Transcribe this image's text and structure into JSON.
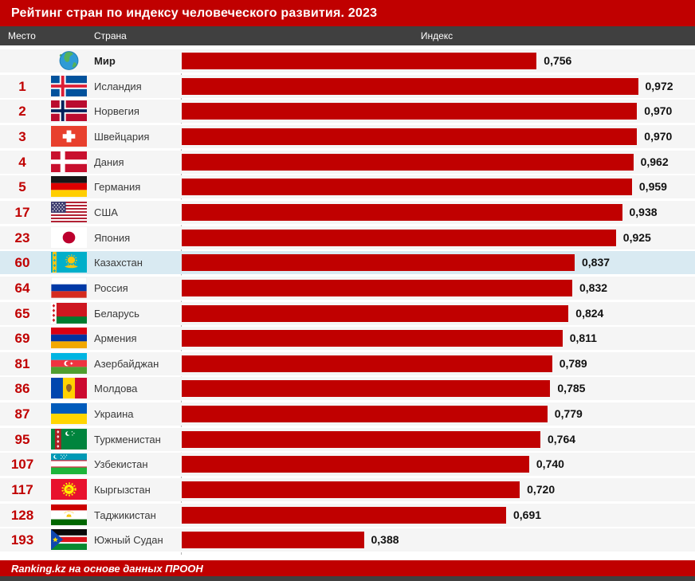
{
  "title": "Рейтинг стран по индексу человеческого развития. 2023",
  "columns": {
    "rank": "Место",
    "country": "Страна",
    "index": "Индекс"
  },
  "footer": {
    "source": "Ranking.kz на основе данных ПРООН"
  },
  "colors": {
    "accent_red": "#c00000",
    "header_dark": "#404040",
    "row_bg": "#f5f5f5",
    "highlight_row_bg": "#d9eaf2",
    "bar_color": "#c00000",
    "rank_color": "#c00000",
    "value_color": "#111111"
  },
  "chart_data": {
    "type": "bar",
    "orientation": "horizontal",
    "title": "Рейтинг стран по индексу человеческого развития. 2023",
    "xlabel": "Индекс",
    "xlim": [
      0,
      1
    ],
    "grid": false,
    "value_format": "comma-decimal",
    "rows": [
      {
        "rank": "",
        "country": "Мир",
        "flag": "world",
        "value": 0.756,
        "label": "0,756",
        "bold": true,
        "highlight": false
      },
      {
        "rank": "1",
        "country": "Исландия",
        "flag": "is",
        "value": 0.972,
        "label": "0,972",
        "bold": false,
        "highlight": false
      },
      {
        "rank": "2",
        "country": "Норвегия",
        "flag": "no",
        "value": 0.97,
        "label": "0,970",
        "bold": false,
        "highlight": false
      },
      {
        "rank": "3",
        "country": "Швейцария",
        "flag": "ch",
        "value": 0.97,
        "label": "0,970",
        "bold": false,
        "highlight": false
      },
      {
        "rank": "4",
        "country": "Дания",
        "flag": "dk",
        "value": 0.962,
        "label": "0,962",
        "bold": false,
        "highlight": false
      },
      {
        "rank": "5",
        "country": "Германия",
        "flag": "de",
        "value": 0.959,
        "label": "0,959",
        "bold": false,
        "highlight": false
      },
      {
        "rank": "17",
        "country": "США",
        "flag": "us",
        "value": 0.938,
        "label": "0,938",
        "bold": false,
        "highlight": false
      },
      {
        "rank": "23",
        "country": "Япония",
        "flag": "jp",
        "value": 0.925,
        "label": "0,925",
        "bold": false,
        "highlight": false
      },
      {
        "rank": "60",
        "country": "Казахстан",
        "flag": "kz",
        "value": 0.837,
        "label": "0,837",
        "bold": false,
        "highlight": true
      },
      {
        "rank": "64",
        "country": "Россия",
        "flag": "ru",
        "value": 0.832,
        "label": "0,832",
        "bold": false,
        "highlight": false
      },
      {
        "rank": "65",
        "country": "Беларусь",
        "flag": "by",
        "value": 0.824,
        "label": "0,824",
        "bold": false,
        "highlight": false
      },
      {
        "rank": "69",
        "country": "Армения",
        "flag": "am",
        "value": 0.811,
        "label": "0,811",
        "bold": false,
        "highlight": false
      },
      {
        "rank": "81",
        "country": "Азербайджан",
        "flag": "az",
        "value": 0.789,
        "label": "0,789",
        "bold": false,
        "highlight": false
      },
      {
        "rank": "86",
        "country": "Молдова",
        "flag": "md",
        "value": 0.785,
        "label": "0,785",
        "bold": false,
        "highlight": false
      },
      {
        "rank": "87",
        "country": "Украина",
        "flag": "ua",
        "value": 0.779,
        "label": "0,779",
        "bold": false,
        "highlight": false
      },
      {
        "rank": "95",
        "country": "Туркменистан",
        "flag": "tm",
        "value": 0.764,
        "label": "0,764",
        "bold": false,
        "highlight": false
      },
      {
        "rank": "107",
        "country": "Узбекистан",
        "flag": "uz",
        "value": 0.74,
        "label": "0,740",
        "bold": false,
        "highlight": false
      },
      {
        "rank": "117",
        "country": "Кыргызстан",
        "flag": "kg",
        "value": 0.72,
        "label": "0,720",
        "bold": false,
        "highlight": false
      },
      {
        "rank": "128",
        "country": "Таджикистан",
        "flag": "tj",
        "value": 0.691,
        "label": "0,691",
        "bold": false,
        "highlight": false
      },
      {
        "rank": "193",
        "country": "Южный Судан",
        "flag": "ss",
        "value": 0.388,
        "label": "0,388",
        "bold": false,
        "highlight": false
      }
    ]
  }
}
